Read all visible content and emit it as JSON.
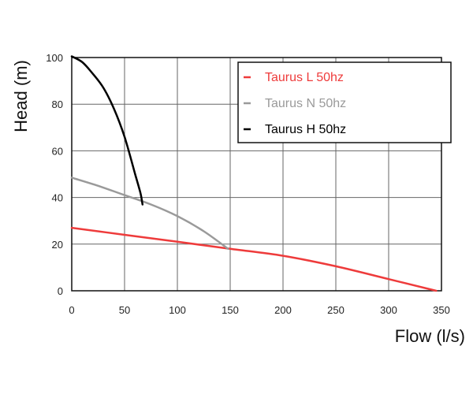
{
  "chart_data": {
    "type": "line",
    "xlabel": "Flow (l/s)",
    "ylabel": "Head (m)",
    "xlim": [
      0,
      350
    ],
    "ylim": [
      0,
      100
    ],
    "x_ticks": [
      "0",
      "50",
      "100",
      "150",
      "200",
      "250",
      "300",
      "350"
    ],
    "y_ticks": [
      "0",
      "20",
      "40",
      "60",
      "80",
      "100"
    ],
    "grid": true,
    "legend_position": "top-right",
    "series": [
      {
        "name": "Taurus L 50hz",
        "color": "#ee3b3b",
        "points": [
          [
            0,
            27
          ],
          [
            50,
            24
          ],
          [
            100,
            21
          ],
          [
            150,
            18
          ],
          [
            200,
            15
          ],
          [
            250,
            10.5
          ],
          [
            300,
            5
          ],
          [
            345,
            0
          ]
        ]
      },
      {
        "name": "Taurus N 50hz",
        "color": "#9a9a9a",
        "points": [
          [
            0,
            48.5
          ],
          [
            25,
            45
          ],
          [
            50,
            41
          ],
          [
            75,
            37
          ],
          [
            100,
            32
          ],
          [
            125,
            25.5
          ],
          [
            148,
            18
          ]
        ]
      },
      {
        "name": "Taurus H 50hz",
        "color": "#000000",
        "points": [
          [
            0,
            100.5
          ],
          [
            10,
            98
          ],
          [
            20,
            93
          ],
          [
            30,
            87
          ],
          [
            40,
            78
          ],
          [
            50,
            66
          ],
          [
            60,
            50
          ],
          [
            65,
            42
          ],
          [
            67,
            37
          ]
        ]
      }
    ]
  }
}
